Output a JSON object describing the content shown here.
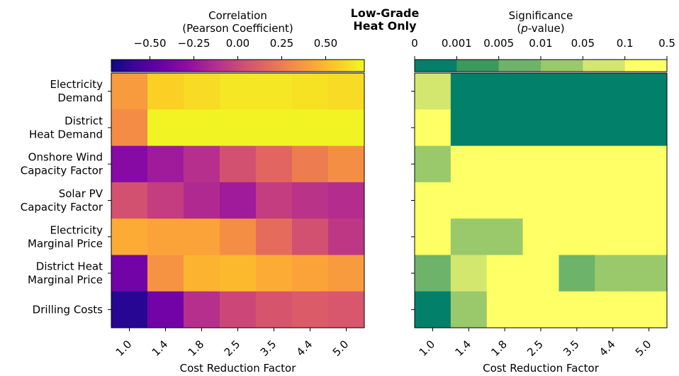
{
  "chart_data": {
    "type": "heatmap",
    "title": "Low-Grade\nHeat Only",
    "rows": [
      "Electricity\nDemand",
      "District\nHeat Demand",
      "Onshore Wind\nCapacity Factor",
      "Solar PV\nCapacity Factor",
      "Electricity\nMarginal Price",
      "District Heat\nMarginal Price",
      "Drilling Costs"
    ],
    "columns": [
      "1.0",
      "1.4",
      "1.8",
      "2.5",
      "3.5",
      "4.4",
      "5.0"
    ],
    "xlabel": "Cost Reduction Factor",
    "panels": [
      {
        "name": "correlation",
        "colorbar_label": "Correlation\n(Pearson Coefficient)",
        "colorbar_ticks": [
          "−0.50",
          "−0.25",
          "0.00",
          "0.25",
          "0.50"
        ],
        "colorbar_tick_values": [
          -0.5,
          -0.25,
          0.0,
          0.25,
          0.5
        ],
        "colorbar_range": [
          -0.72,
          0.72
        ],
        "colormap": "plasma",
        "values": [
          [
            0.38,
            0.58,
            0.62,
            0.66,
            0.66,
            0.64,
            0.62
          ],
          [
            0.32,
            0.7,
            0.7,
            0.7,
            0.7,
            0.7,
            0.7
          ],
          [
            -0.32,
            -0.22,
            -0.12,
            0.05,
            0.15,
            0.25,
            0.33
          ],
          [
            0.05,
            -0.05,
            -0.15,
            -0.22,
            -0.05,
            -0.1,
            -0.13
          ],
          [
            0.45,
            0.42,
            0.42,
            0.33,
            0.18,
            0.05,
            -0.08
          ],
          [
            -0.4,
            0.35,
            0.48,
            0.5,
            0.45,
            0.42,
            0.38
          ],
          [
            -0.65,
            -0.4,
            -0.12,
            0.0,
            0.07,
            0.1,
            0.08
          ]
        ]
      },
      {
        "name": "significance",
        "colorbar_label_line1": "Significance",
        "colorbar_label_var": "p",
        "colorbar_label_rest": "-value)",
        "colorbar_ticks": [
          "0",
          "0.001",
          "0.005",
          "0.01",
          "0.05",
          "0.1",
          "0.5"
        ],
        "bin_colors": [
          "#03806a",
          "#3a9a5e",
          "#6db46a",
          "#99c96b",
          "#d3e76e",
          "#ffff66"
        ],
        "values": [
          [
            4,
            0,
            0,
            0,
            0,
            0,
            0
          ],
          [
            5,
            0,
            0,
            0,
            0,
            0,
            0
          ],
          [
            3,
            5,
            5,
            5,
            5,
            5,
            5
          ],
          [
            5,
            5,
            5,
            5,
            5,
            5,
            5
          ],
          [
            5,
            3,
            3,
            5,
            5,
            5,
            5
          ],
          [
            2,
            4,
            5,
            5,
            2,
            3,
            3
          ],
          [
            0,
            3,
            5,
            5,
            5,
            5,
            5
          ]
        ]
      }
    ]
  }
}
